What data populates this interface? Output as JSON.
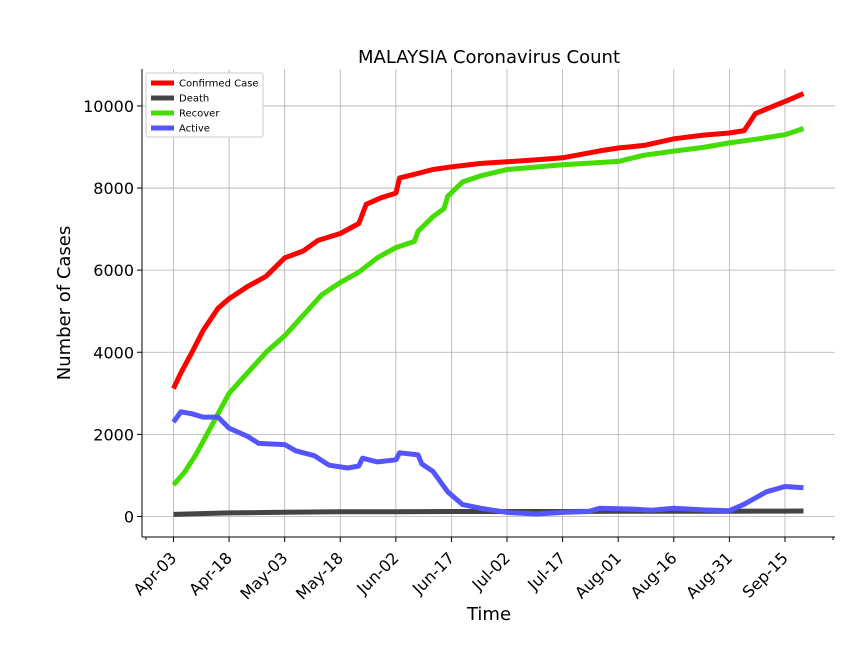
{
  "chart_data": {
    "type": "line",
    "title": "MALAYSIA Coronavirus Count",
    "xlabel": "Time",
    "ylabel": "Number of Cases",
    "x_start": "Apr-03",
    "x_end": "Sep-20",
    "x_ticks": [
      "Apr-03",
      "Apr-18",
      "May-03",
      "May-18",
      "Jun-02",
      "Jun-17",
      "Jul-02",
      "Jul-17",
      "Aug-01",
      "Aug-16",
      "Aug-31",
      "Sep-15"
    ],
    "ylim": [
      -500,
      10900
    ],
    "y_ticks": [
      0,
      2000,
      4000,
      6000,
      8000,
      10000
    ],
    "grid": true,
    "legend_position": "top-left",
    "series": [
      {
        "name": "Confirmed Case",
        "color": "#ff0000",
        "points": [
          [
            "Apr-03",
            3116
          ],
          [
            "Apr-05",
            3500
          ],
          [
            "Apr-08",
            4000
          ],
          [
            "Apr-11",
            4530
          ],
          [
            "Apr-15",
            5072
          ],
          [
            "Apr-18",
            5305
          ],
          [
            "Apr-23",
            5603
          ],
          [
            "Apr-28",
            5851
          ],
          [
            "May-03",
            6298
          ],
          [
            "May-08",
            6467
          ],
          [
            "May-12",
            6726
          ],
          [
            "May-18",
            6894
          ],
          [
            "May-23",
            7137
          ],
          [
            "May-25",
            7604
          ],
          [
            "May-29",
            7762
          ],
          [
            "Jun-02",
            7877
          ],
          [
            "Jun-03",
            8247
          ],
          [
            "Jun-07",
            8336
          ],
          [
            "Jun-12",
            8453
          ],
          [
            "Jun-17",
            8515
          ],
          [
            "Jun-25",
            8600
          ],
          [
            "Jul-02",
            8640
          ],
          [
            "Jul-12",
            8700
          ],
          [
            "Jul-17",
            8737
          ],
          [
            "Jul-27",
            8904
          ],
          [
            "Aug-01",
            8976
          ],
          [
            "Aug-08",
            9038
          ],
          [
            "Aug-16",
            9200
          ],
          [
            "Aug-24",
            9290
          ],
          [
            "Aug-31",
            9340
          ],
          [
            "Sep-04",
            9400
          ],
          [
            "Sep-07",
            9810
          ],
          [
            "Sep-12",
            10000
          ],
          [
            "Sep-16",
            10147
          ],
          [
            "Sep-20",
            10300
          ]
        ]
      },
      {
        "name": "Death",
        "color": "#444444",
        "points": [
          [
            "Apr-03",
            50
          ],
          [
            "Apr-18",
            88
          ],
          [
            "May-03",
            105
          ],
          [
            "May-18",
            113
          ],
          [
            "Jun-02",
            115
          ],
          [
            "Jun-17",
            121
          ],
          [
            "Jul-02",
            121
          ],
          [
            "Jul-17",
            122
          ],
          [
            "Aug-01",
            125
          ],
          [
            "Aug-16",
            125
          ],
          [
            "Aug-31",
            128
          ],
          [
            "Sep-15",
            130
          ],
          [
            "Sep-20",
            133
          ]
        ]
      },
      {
        "name": "Recover",
        "color": "#44dd00",
        "points": [
          [
            "Apr-03",
            767
          ],
          [
            "Apr-06",
            1081
          ],
          [
            "Apr-09",
            1500
          ],
          [
            "Apr-12",
            2000
          ],
          [
            "Apr-15",
            2500
          ],
          [
            "Apr-18",
            3000
          ],
          [
            "Apr-23",
            3500
          ],
          [
            "Apr-28",
            4000
          ],
          [
            "May-03",
            4400
          ],
          [
            "May-08",
            4900
          ],
          [
            "May-13",
            5400
          ],
          [
            "May-18",
            5700
          ],
          [
            "May-23",
            5950
          ],
          [
            "May-28",
            6300
          ],
          [
            "Jun-02",
            6550
          ],
          [
            "Jun-07",
            6700
          ],
          [
            "Jun-08",
            6950
          ],
          [
            "Jun-12",
            7300
          ],
          [
            "Jun-15",
            7500
          ],
          [
            "Jun-16",
            7800
          ],
          [
            "Jun-20",
            8150
          ],
          [
            "Jun-25",
            8300
          ],
          [
            "Jul-02",
            8450
          ],
          [
            "Jul-17",
            8570
          ],
          [
            "Aug-01",
            8650
          ],
          [
            "Aug-08",
            8800
          ],
          [
            "Aug-16",
            8900
          ],
          [
            "Aug-24",
            8990
          ],
          [
            "Aug-31",
            9100
          ],
          [
            "Sep-08",
            9200
          ],
          [
            "Sep-15",
            9300
          ],
          [
            "Sep-20",
            9450
          ]
        ]
      },
      {
        "name": "Active",
        "color": "#5555ff",
        "points": [
          [
            "Apr-03",
            2300
          ],
          [
            "Apr-05",
            2550
          ],
          [
            "Apr-08",
            2500
          ],
          [
            "Apr-11",
            2420
          ],
          [
            "Apr-15",
            2420
          ],
          [
            "Apr-18",
            2150
          ],
          [
            "Apr-23",
            1950
          ],
          [
            "Apr-26",
            1780
          ],
          [
            "May-03",
            1750
          ],
          [
            "May-06",
            1600
          ],
          [
            "May-11",
            1480
          ],
          [
            "May-15",
            1250
          ],
          [
            "May-20",
            1180
          ],
          [
            "May-23",
            1230
          ],
          [
            "May-24",
            1420
          ],
          [
            "May-28",
            1330
          ],
          [
            "Jun-02",
            1380
          ],
          [
            "Jun-03",
            1550
          ],
          [
            "Jun-08",
            1500
          ],
          [
            "Jun-09",
            1280
          ],
          [
            "Jun-12",
            1100
          ],
          [
            "Jun-16",
            600
          ],
          [
            "Jun-20",
            290
          ],
          [
            "Jun-25",
            200
          ],
          [
            "Jul-02",
            100
          ],
          [
            "Jul-10",
            60
          ],
          [
            "Jul-17",
            100
          ],
          [
            "Jul-24",
            120
          ],
          [
            "Jul-27",
            200
          ],
          [
            "Aug-05",
            180
          ],
          [
            "Aug-10",
            150
          ],
          [
            "Aug-16",
            200
          ],
          [
            "Aug-24",
            160
          ],
          [
            "Aug-31",
            140
          ],
          [
            "Sep-04",
            300
          ],
          [
            "Sep-07",
            450
          ],
          [
            "Sep-10",
            600
          ],
          [
            "Sep-15",
            730
          ],
          [
            "Sep-20",
            700
          ]
        ]
      }
    ]
  }
}
